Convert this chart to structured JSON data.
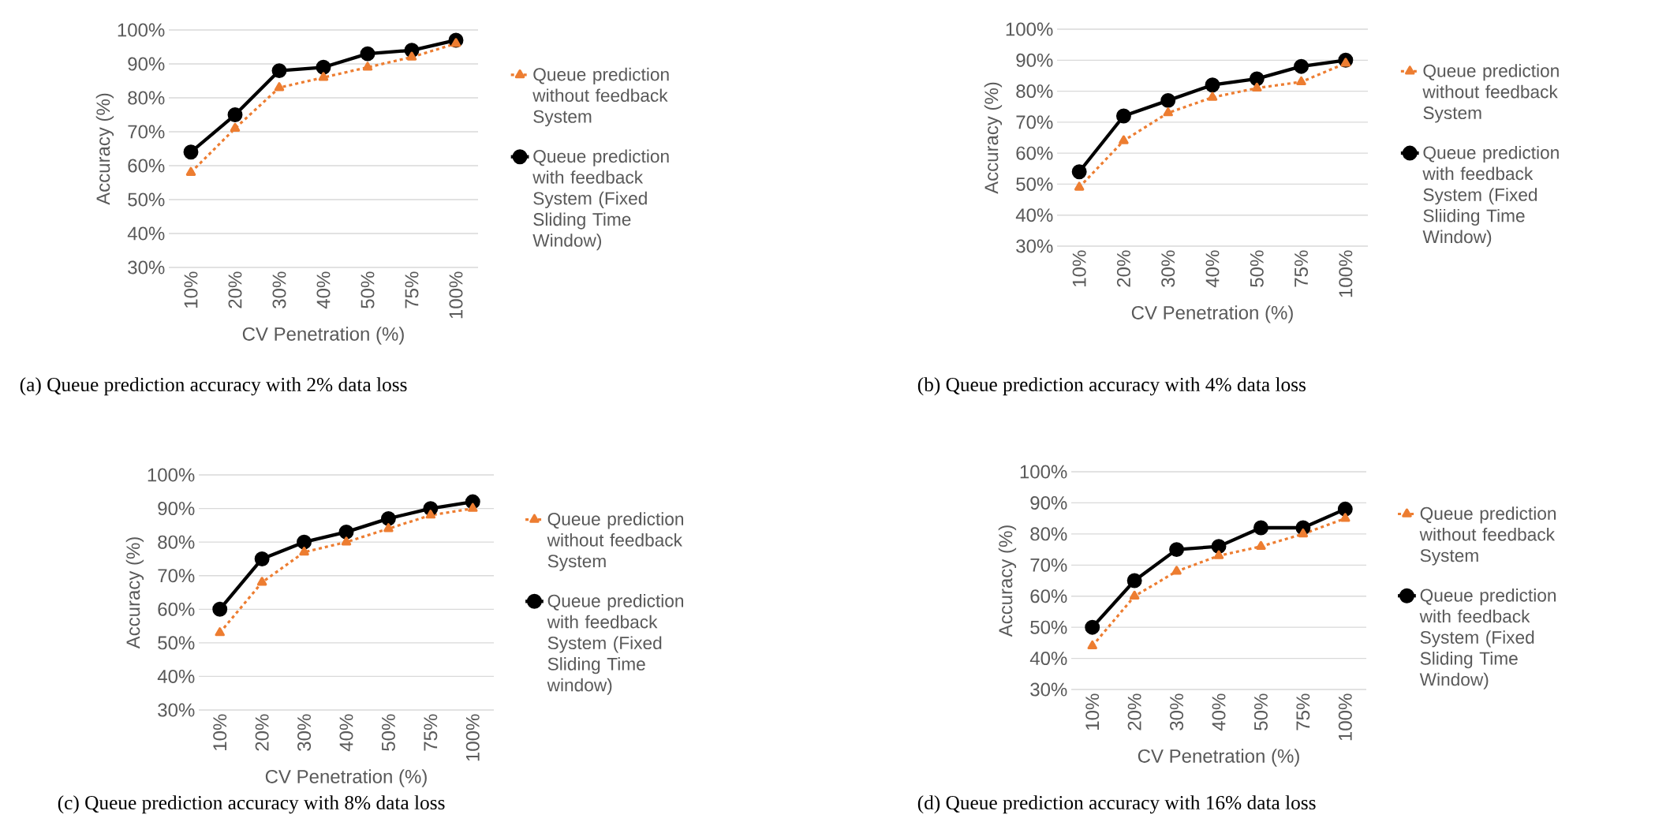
{
  "chart_data": [
    {
      "type": "line",
      "title": "(a) Queue prediction accuracy with 2% data loss",
      "xlabel": "CV Penetration (%)",
      "ylabel": "Accuracy (%)",
      "categories": [
        "10%",
        "20%",
        "30%",
        "40%",
        "50%",
        "75%",
        "100%"
      ],
      "ylim": [
        30,
        100
      ],
      "yticks": [
        {
          "value": 30,
          "label": "30%"
        },
        {
          "value": 40,
          "label": "40%"
        },
        {
          "value": 50,
          "label": "50%"
        },
        {
          "value": 60,
          "label": "60%"
        },
        {
          "value": 70,
          "label": "70%"
        },
        {
          "value": 80,
          "label": "80%"
        },
        {
          "value": 90,
          "label": "90%"
        },
        {
          "value": 100,
          "label": "100%"
        }
      ],
      "grid": "y",
      "legend": "right",
      "series": [
        {
          "name": "Queue prediction without feedback System",
          "color": "#ed7d31",
          "marker": "triangle",
          "line_style": "dashed",
          "values": [
            58,
            71,
            83,
            86,
            89,
            92,
            96
          ]
        },
        {
          "name": "Queue prediction with feedback System (Fixed Sliding Time Window)",
          "color": "#000000",
          "marker": "circle",
          "line_style": "solid",
          "values": [
            64,
            75,
            88,
            89,
            93,
            94,
            97
          ]
        }
      ]
    },
    {
      "type": "line",
      "title": "(b) Queue prediction accuracy with 4% data loss",
      "xlabel": "CV Penetration (%)",
      "ylabel": "Accuracy (%)",
      "categories": [
        "10%",
        "20%",
        "30%",
        "40%",
        "50%",
        "75%",
        "100%"
      ],
      "ylim": [
        30,
        100
      ],
      "yticks": [
        {
          "value": 30,
          "label": "30%"
        },
        {
          "value": 40,
          "label": "40%"
        },
        {
          "value": 50,
          "label": "50%"
        },
        {
          "value": 60,
          "label": "60%"
        },
        {
          "value": 70,
          "label": "70%"
        },
        {
          "value": 80,
          "label": "80%"
        },
        {
          "value": 90,
          "label": "90%"
        },
        {
          "value": 100,
          "label": "100%"
        }
      ],
      "grid": "y",
      "legend": "right",
      "series": [
        {
          "name": "Queue prediction without feedback System",
          "color": "#ed7d31",
          "marker": "triangle",
          "line_style": "dashed",
          "values": [
            49,
            64,
            73,
            78,
            81,
            83,
            89
          ]
        },
        {
          "name": "Queue prediction with feedback System (Fixed Sliiding Time Window)",
          "color": "#000000",
          "marker": "circle",
          "line_style": "solid",
          "values": [
            54,
            72,
            77,
            82,
            84,
            88,
            90
          ]
        }
      ]
    },
    {
      "type": "line",
      "title": "(c) Queue prediction accuracy with 8% data loss",
      "xlabel": "CV Penetration (%)",
      "ylabel": "Accuracy (%)",
      "categories": [
        "10%",
        "20%",
        "30%",
        "40%",
        "50%",
        "75%",
        "100%"
      ],
      "ylim": [
        30,
        100
      ],
      "yticks": [
        {
          "value": 30,
          "label": "30%"
        },
        {
          "value": 40,
          "label": "40%"
        },
        {
          "value": 50,
          "label": "50%"
        },
        {
          "value": 60,
          "label": "60%"
        },
        {
          "value": 70,
          "label": "70%"
        },
        {
          "value": 80,
          "label": "80%"
        },
        {
          "value": 90,
          "label": "90%"
        },
        {
          "value": 100,
          "label": "100%"
        }
      ],
      "grid": "y",
      "legend": "right",
      "series": [
        {
          "name": "Queue prediction without feedback System",
          "color": "#ed7d31",
          "marker": "triangle",
          "line_style": "dashed",
          "values": [
            53,
            68,
            77,
            80,
            84,
            88,
            90
          ]
        },
        {
          "name": "Queue prediction with feedback System (Fixed Sliding Time window)",
          "color": "#000000",
          "marker": "circle",
          "line_style": "solid",
          "values": [
            60,
            75,
            80,
            83,
            87,
            90,
            92
          ]
        }
      ]
    },
    {
      "type": "line",
      "title": "(d) Queue prediction accuracy with 16% data loss",
      "xlabel": "CV Penetration (%)",
      "ylabel": "Accuracy (%)",
      "categories": [
        "10%",
        "20%",
        "30%",
        "40%",
        "50%",
        "75%",
        "100%"
      ],
      "ylim": [
        30,
        100
      ],
      "yticks": [
        {
          "value": 30,
          "label": "30%"
        },
        {
          "value": 40,
          "label": "40%"
        },
        {
          "value": 50,
          "label": "50%"
        },
        {
          "value": 60,
          "label": "60%"
        },
        {
          "value": 70,
          "label": "70%"
        },
        {
          "value": 80,
          "label": "80%"
        },
        {
          "value": 90,
          "label": "90%"
        },
        {
          "value": 100,
          "label": "100%"
        }
      ],
      "grid": "y",
      "legend": "right",
      "series": [
        {
          "name": "Queue prediction without feedback System",
          "color": "#ed7d31",
          "marker": "triangle",
          "line_style": "dashed",
          "values": [
            44,
            60,
            68,
            73,
            76,
            80,
            85
          ]
        },
        {
          "name": "Queue prediction with feedback System (Fixed Sliding Time Window)",
          "color": "#000000",
          "marker": "circle",
          "line_style": "solid",
          "values": [
            50,
            65,
            75,
            76,
            82,
            82,
            88
          ]
        }
      ]
    }
  ]
}
